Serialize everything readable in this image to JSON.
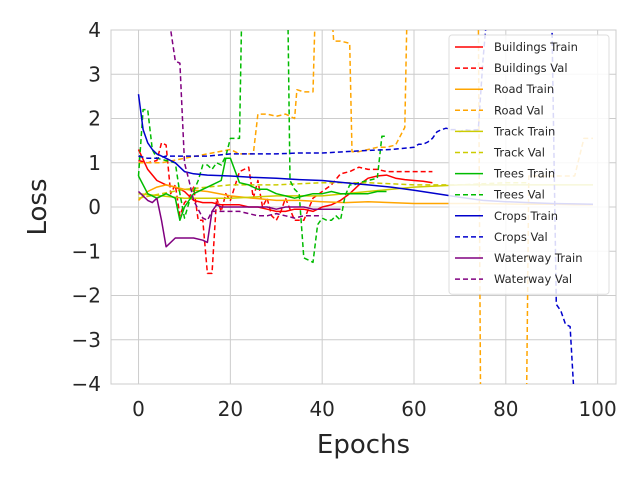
{
  "chart_data": {
    "type": "line",
    "xlabel": "Epochs",
    "ylabel": "Loss",
    "xlim": [
      -6,
      104
    ],
    "ylim": [
      -4,
      4
    ],
    "xticks": [
      0,
      20,
      40,
      60,
      80,
      100
    ],
    "yticks": [
      -4,
      -3,
      -2,
      -1,
      0,
      1,
      2,
      3,
      4
    ],
    "xtick_labels": [
      "0",
      "20",
      "40",
      "60",
      "80",
      "100"
    ],
    "ytick_labels": [
      "−4",
      "−3",
      "−2",
      "−1",
      "0",
      "1",
      "2",
      "3",
      "4"
    ],
    "grid": true,
    "legend_position": "top-right",
    "series": [
      {
        "name": "Buildings Train",
        "color": "#ff0000",
        "dash": "solid",
        "x": [
          0,
          2,
          4,
          6,
          8,
          10,
          12,
          14,
          16,
          18,
          20,
          22,
          24,
          26,
          28,
          30,
          32,
          34,
          36,
          38,
          40,
          42,
          44,
          46,
          48,
          50,
          52,
          54,
          56,
          58,
          60,
          62,
          64
        ],
        "y": [
          1.3,
          0.85,
          0.6,
          0.5,
          0.45,
          0.35,
          0.15,
          0.1,
          0.1,
          0.05,
          0.05,
          0.05,
          0.0,
          0.0,
          -0.05,
          -0.1,
          -0.1,
          -0.05,
          -0.05,
          -0.1,
          0.0,
          0.05,
          0.15,
          0.3,
          0.5,
          0.65,
          0.7,
          0.72,
          0.65,
          0.62,
          0.6,
          0.58,
          0.55
        ]
      },
      {
        "name": "Buildings Val",
        "color": "#ff0000",
        "dash": "dashed",
        "x": [
          0,
          2,
          4,
          5,
          6,
          7,
          8,
          9,
          10,
          11,
          12,
          13,
          14,
          15,
          16,
          17,
          18,
          19,
          20,
          22,
          24,
          25,
          26,
          27,
          28,
          29,
          30,
          31,
          32,
          34,
          36,
          38,
          40,
          42,
          44,
          46,
          48,
          50,
          52,
          54,
          56,
          58,
          60,
          62,
          64
        ],
        "y": [
          1.05,
          1.0,
          1.05,
          1.45,
          1.4,
          0.3,
          0.5,
          -0.2,
          0.1,
          0.2,
          0.45,
          -0.3,
          -0.3,
          -1.5,
          -1.5,
          0.2,
          -0.1,
          0.3,
          0.15,
          0.8,
          0.9,
          0.2,
          0.6,
          0.0,
          0.2,
          -0.2,
          -0.3,
          -0.1,
          0.2,
          -0.3,
          -0.3,
          0.2,
          0.35,
          0.5,
          0.75,
          0.8,
          0.9,
          0.85,
          0.85,
          0.8,
          0.8,
          0.8,
          0.8,
          0.8,
          0.8
        ]
      },
      {
        "name": "Road Train",
        "color": "#ffa500",
        "dash": "solid",
        "x": [
          0,
          2,
          4,
          6,
          8,
          10,
          15,
          20,
          25,
          30,
          35,
          40,
          45,
          50,
          55,
          60,
          65,
          70,
          75,
          80,
          85,
          90,
          95,
          99
        ],
        "y": [
          0.15,
          0.35,
          0.45,
          0.5,
          0.45,
          0.4,
          0.35,
          0.25,
          0.2,
          0.15,
          0.15,
          0.12,
          0.1,
          0.12,
          0.1,
          0.08,
          0.08,
          0.08,
          0.08,
          0.07,
          0.06,
          0.06,
          0.05,
          0.05
        ]
      },
      {
        "name": "Road Val",
        "color": "#ffa500",
        "dash": "dashed",
        "x": [
          0,
          5,
          10,
          15,
          20,
          22,
          25,
          26,
          28,
          30,
          32,
          34,
          34.5,
          36,
          38,
          38.5,
          40,
          42,
          42.5,
          44,
          46,
          46.5,
          48,
          50,
          52,
          54,
          56,
          58,
          58.5,
          60,
          62,
          70,
          74,
          74.5,
          75,
          78,
          80,
          84,
          84.5,
          85,
          88,
          90,
          95,
          97,
          98,
          99
        ],
        "y": [
          1.0,
          1.0,
          1.1,
          1.2,
          1.3,
          1.2,
          1.2,
          2.1,
          2.1,
          2.05,
          2.1,
          2.0,
          2.65,
          2.6,
          2.6,
          4.5,
          4.5,
          4.5,
          3.75,
          3.75,
          3.7,
          1.25,
          1.25,
          1.3,
          1.35,
          1.35,
          1.4,
          1.8,
          4.5,
          4.5,
          4.5,
          4.5,
          4.5,
          -4.5,
          -4.5,
          -4.5,
          -4.5,
          -4.5,
          -4.5,
          0.7,
          0.7,
          0.7,
          0.7,
          1.55,
          1.55,
          1.55
        ]
      },
      {
        "name": "Track Train",
        "color": "#cccc00",
        "dash": "solid",
        "x": [
          0,
          5,
          10,
          20,
          30,
          40,
          50,
          60,
          70,
          80,
          90,
          99
        ],
        "y": [
          0.3,
          0.25,
          0.2,
          0.2,
          0.25,
          0.25,
          0.35,
          0.45,
          0.5,
          0.5,
          0.5,
          0.5
        ]
      },
      {
        "name": "Track Val",
        "color": "#cccc00",
        "dash": "dashed",
        "x": [
          0,
          5,
          10,
          20,
          30,
          40,
          50,
          60,
          70,
          80,
          85
        ],
        "y": [
          0.2,
          0.3,
          0.4,
          0.5,
          0.5,
          0.55,
          0.55,
          0.5,
          0.5,
          0.55,
          0.55
        ]
      },
      {
        "name": "Trees Train",
        "color": "#00bb00",
        "dash": "solid",
        "x": [
          0,
          2,
          4,
          6,
          8,
          9,
          10,
          12,
          14,
          16,
          18,
          19,
          20,
          22,
          24,
          26,
          28,
          30,
          32,
          34,
          36,
          38,
          40,
          42,
          44,
          46,
          48,
          50,
          52,
          54
        ],
        "y": [
          0.7,
          0.3,
          0.2,
          0.3,
          0.2,
          -0.3,
          0.0,
          0.3,
          0.4,
          0.5,
          0.6,
          1.1,
          1.1,
          0.55,
          0.5,
          0.4,
          0.4,
          0.3,
          0.25,
          0.2,
          0.25,
          0.3,
          0.3,
          0.35,
          0.3,
          0.3,
          0.3,
          0.3,
          0.35,
          0.35
        ]
      },
      {
        "name": "Trees Val",
        "color": "#00bb00",
        "dash": "dashed",
        "x": [
          0,
          1,
          2,
          3,
          4,
          6,
          8,
          9,
          10,
          11,
          12,
          13,
          14,
          15,
          16,
          17,
          18,
          19,
          20,
          21,
          22,
          22.5,
          23,
          24,
          26,
          28,
          30,
          31,
          32,
          32.5,
          33,
          34,
          35,
          36,
          37,
          38,
          39,
          40,
          41,
          42,
          43,
          44,
          45,
          46,
          47,
          48,
          50,
          52,
          53,
          54
        ],
        "y": [
          0.7,
          2.2,
          2.2,
          1.3,
          1.1,
          1.05,
          1.0,
          0.3,
          -0.25,
          0.1,
          0.35,
          0.6,
          0.95,
          0.95,
          0.85,
          1.0,
          0.95,
          1.15,
          1.55,
          1.55,
          1.55,
          4.5,
          4.5,
          4.5,
          4.5,
          4.5,
          4.5,
          4.5,
          4.5,
          4.5,
          0.6,
          0.4,
          0.3,
          -1.15,
          -1.2,
          -1.25,
          -0.4,
          -0.25,
          -0.3,
          -0.3,
          -0.2,
          -0.3,
          0.25,
          0.5,
          0.5,
          0.55,
          0.6,
          0.65,
          1.6,
          1.6
        ]
      },
      {
        "name": "Crops Train",
        "color": "#0000cc",
        "dash": "solid",
        "x": [
          0,
          1,
          2,
          3,
          4,
          5,
          6,
          8,
          10,
          12,
          15,
          20,
          25,
          30,
          35,
          40,
          45,
          50,
          55,
          60,
          65,
          70,
          75,
          80,
          85,
          90,
          95,
          99
        ],
        "y": [
          2.55,
          1.75,
          1.45,
          1.3,
          1.2,
          1.15,
          1.1,
          1.0,
          0.8,
          0.75,
          0.72,
          0.7,
          0.67,
          0.65,
          0.62,
          0.6,
          0.55,
          0.5,
          0.45,
          0.38,
          0.3,
          0.22,
          0.15,
          0.12,
          0.1,
          0.08,
          0.07,
          0.06
        ]
      },
      {
        "name": "Crops Val",
        "color": "#0000cc",
        "dash": "dashed",
        "x": [
          0,
          2,
          4,
          6,
          10,
          15,
          20,
          25,
          30,
          35,
          40,
          45,
          50,
          55,
          60,
          61,
          62,
          63,
          64,
          65,
          66,
          67,
          68,
          69,
          70,
          71,
          72,
          74,
          75,
          76,
          77,
          78,
          80,
          82,
          84,
          86,
          88,
          89,
          89.5,
          90,
          91,
          92,
          93,
          94,
          95,
          96,
          98,
          99
        ],
        "y": [
          1.15,
          1.1,
          1.1,
          1.15,
          1.15,
          1.15,
          1.2,
          1.2,
          1.2,
          1.22,
          1.22,
          1.25,
          1.28,
          1.3,
          1.35,
          1.42,
          1.42,
          1.47,
          1.55,
          1.7,
          1.75,
          1.78,
          1.75,
          1.75,
          1.7,
          1.75,
          1.73,
          1.75,
          3.3,
          4.5,
          4.5,
          4.5,
          4.5,
          4.5,
          4.5,
          4.5,
          4.5,
          4.5,
          4.5,
          4.5,
          -2.2,
          -2.35,
          -2.65,
          -2.7,
          -4.5,
          -4.5,
          -4.5,
          -4.5
        ]
      },
      {
        "name": "Waterway Train",
        "color": "#800080",
        "dash": "solid",
        "x": [
          0,
          1,
          2,
          3,
          4,
          5,
          6,
          8,
          10,
          12,
          14,
          15,
          16,
          17,
          18,
          20,
          22,
          24,
          26,
          28,
          30,
          32,
          34,
          36,
          38,
          40,
          42,
          44
        ],
        "y": [
          0.35,
          0.25,
          0.15,
          0.1,
          0.2,
          -0.3,
          -0.9,
          -0.7,
          -0.7,
          -0.7,
          -0.75,
          -0.8,
          -0.1,
          0.05,
          0.0,
          0.0,
          0.0,
          0.0,
          0.0,
          0.0,
          -0.05,
          0.0,
          0.0,
          0.0,
          -0.05,
          -0.05,
          -0.05,
          -0.05
        ]
      },
      {
        "name": "Waterway Val",
        "color": "#800080",
        "dash": "dashed",
        "x": [
          6,
          7,
          8,
          9,
          10,
          11,
          12,
          14,
          15,
          16,
          18,
          20,
          22,
          24,
          26,
          28,
          30,
          32,
          34,
          36,
          38,
          40
        ],
        "y": [
          4.5,
          4.0,
          3.3,
          3.25,
          1.0,
          0.6,
          0.15,
          -0.25,
          -0.3,
          -0.1,
          -0.1,
          -0.1,
          -0.1,
          -0.15,
          -0.2,
          -0.2,
          -0.15,
          -0.2,
          -0.25,
          -0.2,
          -0.2,
          -0.2
        ]
      }
    ]
  }
}
